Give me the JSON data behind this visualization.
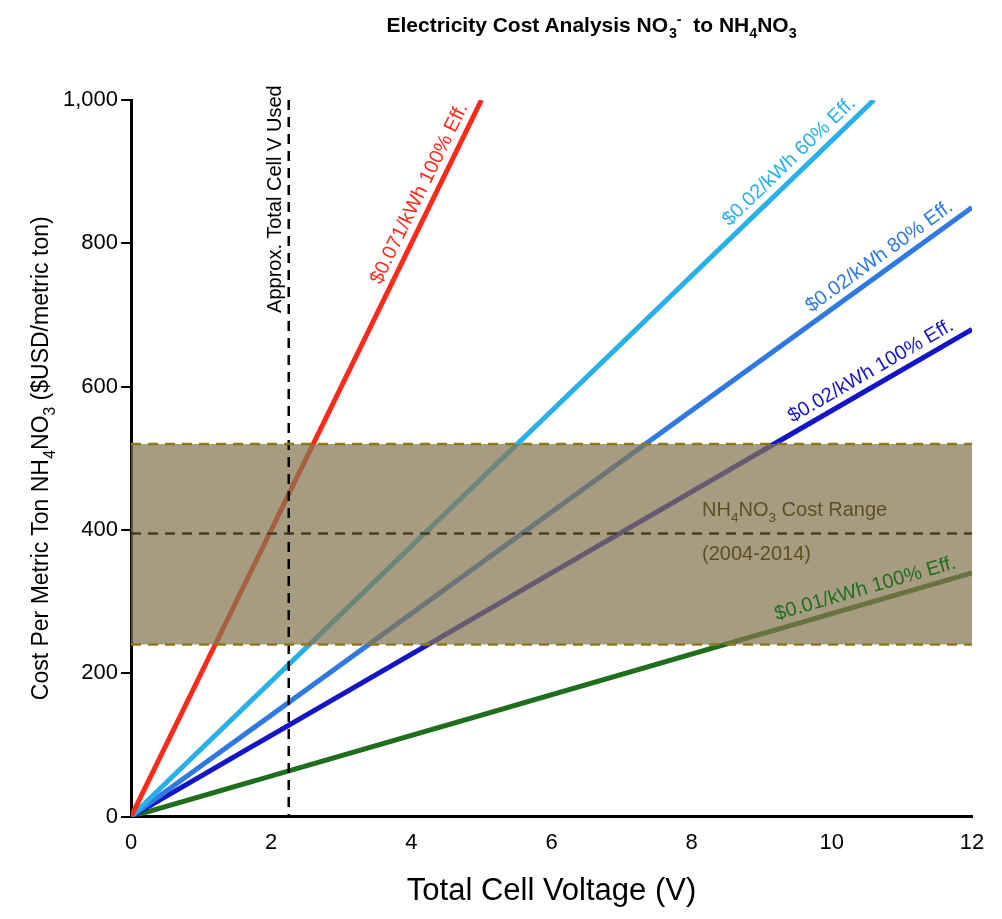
{
  "chart_data": {
    "type": "line",
    "title": "Electricity Cost Analysis NO$_{3}$$^{-}$  to NH$_{4}$NO$_{3}$",
    "xlabel": "Total Cell Voltage (V)",
    "ylabel": "Cost Per Metric Ton NH$_{4}$NO$_{3}$ ($USD/metric ton)",
    "xlim": [
      0,
      12
    ],
    "xticks": [
      0,
      2,
      4,
      6,
      8,
      10,
      12
    ],
    "ylim": [
      0,
      1000
    ],
    "yticks": [
      0,
      200,
      400,
      600,
      800,
      {
        "value": 1000,
        "label": "1,000"
      }
    ],
    "series": [
      {
        "name": "$0.071/kWh 100% Eff.",
        "color": "#ff2a1a",
        "x": [
          0,
          5
        ],
        "values": [
          0,
          1000
        ]
      },
      {
        "name": "$0.02/kWh 60% Eff.",
        "color": "#29b0e8",
        "x": [
          0,
          10.6
        ],
        "values": [
          0,
          1000
        ]
      },
      {
        "name": "$0.02/kWh 80% Eff.",
        "color": "#2f7ae0",
        "x": [
          0,
          12
        ],
        "values": [
          0,
          850
        ]
      },
      {
        "name": "$0.02/kWh 100% Eff.",
        "color": "#1414c8",
        "x": [
          0,
          12
        ],
        "values": [
          0,
          680
        ]
      },
      {
        "name": "$0.01/kWh 100% Eff.",
        "color": "#1e6e1e",
        "x": [
          0,
          12
        ],
        "values": [
          0,
          340
        ]
      }
    ],
    "ref_lines": [
      {
        "axis": "x",
        "value": 2.25,
        "label": "Approx. Total Cell V Used",
        "color": "#000000",
        "line_style": "dashed"
      },
      {
        "axis": "y",
        "value": 395,
        "color": "#4a3c24",
        "line_style": "dashed"
      },
      {
        "axis": "y",
        "value": 520,
        "color": "#8a7a1c",
        "line_style": "dashed"
      },
      {
        "axis": "y",
        "value": 240,
        "color": "#8a7a1c",
        "line_style": "dashed"
      }
    ],
    "bands": [
      {
        "axis": "y",
        "from": 240,
        "to": 520,
        "label": "NH$_{4}$NO$_{3}$ Cost Range\n(2004-2014)",
        "color": "#857650"
      }
    ]
  }
}
